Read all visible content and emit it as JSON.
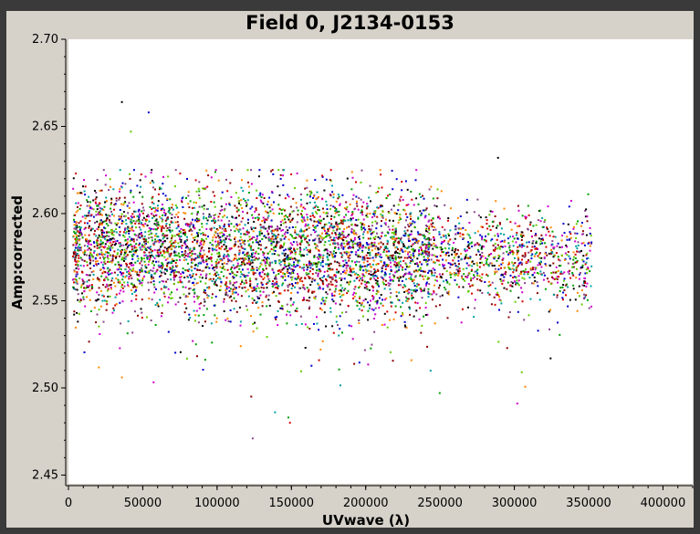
{
  "chart_data": {
    "type": "scatter",
    "title": "Field 0, J2134-0153",
    "xlabel": "UVwave (λ)",
    "ylabel": "Amp:corrected",
    "xlim": [
      0,
      420000
    ],
    "ylim": [
      2.445,
      2.7
    ],
    "x_ticks": [
      "0",
      "50000",
      "100000",
      "150000",
      "200000",
      "250000",
      "300000",
      "350000",
      "400000"
    ],
    "y_ticks": [
      "2.45",
      "2.50",
      "2.55",
      "2.60",
      "2.65",
      "2.70"
    ],
    "y_tick_values": [
      2.45,
      2.5,
      2.55,
      2.6,
      2.65,
      2.7
    ],
    "x_tick_values": [
      0,
      50000,
      100000,
      150000,
      200000,
      250000,
      300000,
      350000,
      400000
    ],
    "grid": false,
    "series_colors": [
      "#000000",
      "#8b0000",
      "#d40000",
      "#0000cc",
      "#cc00cc",
      "#00a000",
      "#66cc00",
      "#ff8800",
      "#00a0a0",
      "#884488"
    ],
    "distribution": {
      "x_range": [
        3000,
        352000
      ],
      "center_amp": 2.581,
      "spread_amp": 0.018,
      "outlier_min_amp": 2.471,
      "outlier_max_amp": 2.664
    },
    "outlier_points": [
      {
        "x": 36000,
        "y": 2.664
      },
      {
        "x": 54000,
        "y": 2.658
      },
      {
        "x": 42000,
        "y": 2.647
      },
      {
        "x": 124000,
        "y": 2.471
      },
      {
        "x": 149000,
        "y": 2.48
      },
      {
        "x": 148000,
        "y": 2.483
      },
      {
        "x": 139000,
        "y": 2.486
      },
      {
        "x": 123000,
        "y": 2.495
      },
      {
        "x": 302000,
        "y": 2.491
      },
      {
        "x": 36000,
        "y": 2.506
      },
      {
        "x": 289000,
        "y": 2.632
      },
      {
        "x": 337000,
        "y": 2.604
      },
      {
        "x": 305000,
        "y": 2.509
      }
    ]
  }
}
